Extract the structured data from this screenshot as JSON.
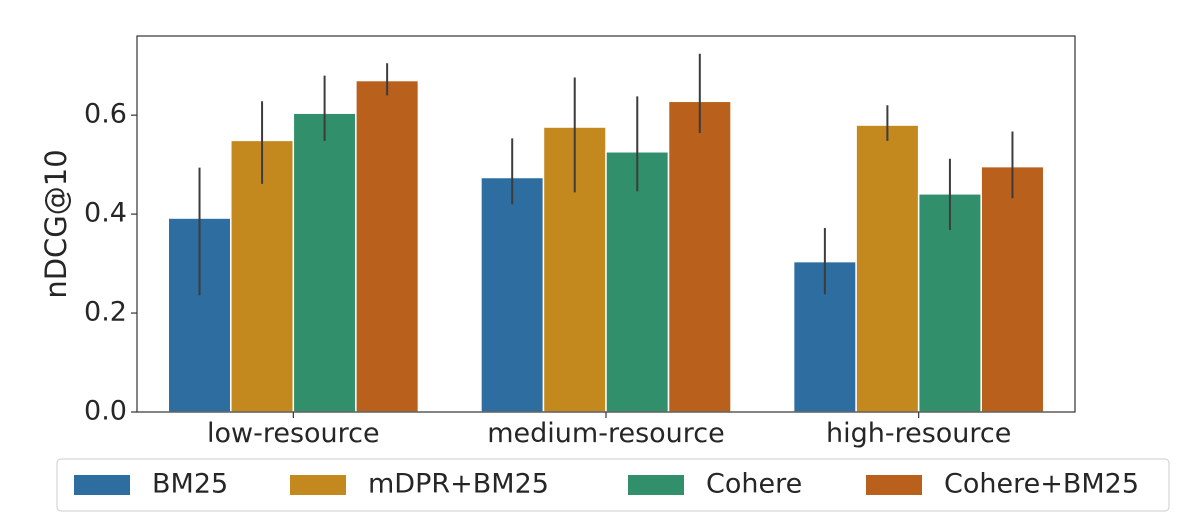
{
  "chart_data": {
    "type": "bar",
    "title": "",
    "xlabel": "",
    "ylabel": "nDCG@10",
    "ylim": [
      0,
      0.76
    ],
    "yticks": [
      0.0,
      0.2,
      0.4,
      0.6
    ],
    "ytick_labels": [
      "0.0",
      "0.2",
      "0.4",
      "0.6"
    ],
    "grid": false,
    "legend_position": "bottom",
    "categories": [
      "low-resource",
      "medium-resource",
      "high-resource"
    ],
    "series": [
      {
        "name": "BM25",
        "color": "#2d6d9f",
        "values": [
          0.392,
          0.474,
          0.304
        ],
        "error_low": [
          0.236,
          0.42,
          0.238
        ],
        "error_high": [
          0.494,
          0.553,
          0.372
        ]
      },
      {
        "name": "mDPR+BM25",
        "color": "#c4891e",
        "values": [
          0.549,
          0.576,
          0.58
        ],
        "error_low": [
          0.461,
          0.444,
          0.548
        ],
        "error_high": [
          0.628,
          0.676,
          0.62
        ]
      },
      {
        "name": "Cohere",
        "color": "#31906b",
        "values": [
          0.604,
          0.526,
          0.441
        ],
        "error_low": [
          0.548,
          0.446,
          0.368
        ],
        "error_high": [
          0.68,
          0.638,
          0.512
        ]
      },
      {
        "name": "Cohere+BM25",
        "color": "#b9601d",
        "values": [
          0.67,
          0.628,
          0.496
        ],
        "error_low": [
          0.64,
          0.564,
          0.432
        ],
        "error_high": [
          0.705,
          0.724,
          0.567
        ]
      }
    ]
  }
}
